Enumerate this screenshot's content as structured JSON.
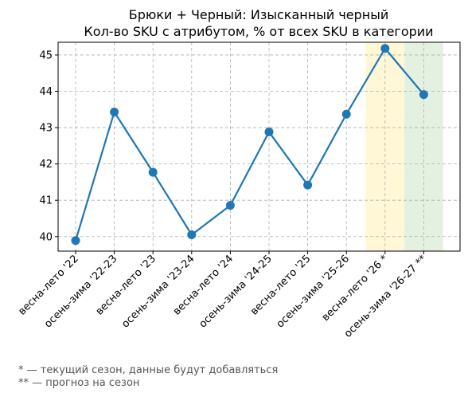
{
  "chart_data": {
    "type": "line",
    "title": "Брюки + Черный: Изысканный черный",
    "subtitle": "Кол-во SKU с атрибутом, % от всех SKU в категории",
    "xlabel": "",
    "ylabel": "",
    "categories": [
      "весна-лето '22",
      "осень-зима '22-23",
      "весна-лето '23",
      "осень-зима '23-24",
      "весна-лето '24",
      "осень-зима '24-25",
      "весна-лето '25",
      "осень-зима '25-26",
      "весна-лето '26 *",
      "осень-зима '26-27 **"
    ],
    "series": [
      {
        "values": [
          39.89,
          43.43,
          41.77,
          40.05,
          40.86,
          42.88,
          41.42,
          43.37,
          45.18,
          43.91
        ]
      }
    ],
    "ylim": [
      39.6,
      45.35
    ],
    "yticks": [
      40,
      41,
      42,
      43,
      44,
      45
    ],
    "grid": true,
    "line_color": "#1f77b4",
    "highlights": [
      {
        "category_index": 8,
        "color": "#fff7d6"
      },
      {
        "category_index": 9,
        "color": "#e5f1e0"
      }
    ]
  },
  "footnotes": [
    "* — текущий сезон, данные будут добавляться",
    "** — прогноз на сезон"
  ]
}
